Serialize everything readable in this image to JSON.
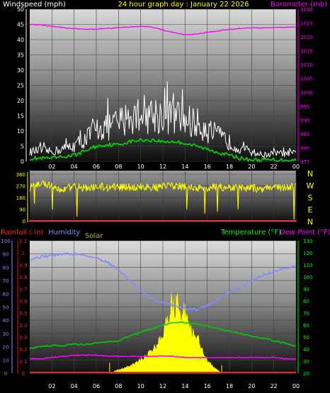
{
  "chart_data": [
    {
      "type": "line",
      "title": "24 hour graph day : January 22 2026",
      "ylabel_left": "Windspeed (mph)",
      "ylabel_right": "Barometer (mb)",
      "y_left_ticks": [
        0,
        5,
        10,
        15,
        20,
        25,
        30,
        35,
        40,
        45,
        50
      ],
      "y_right_ticks": [
        975,
        980,
        985,
        990,
        995,
        1000,
        1005,
        1010,
        1015,
        1020,
        1025,
        1030
      ],
      "ylim_left": [
        0,
        50
      ],
      "ylim_right": [
        975,
        1030
      ],
      "x_ticks": [
        "02",
        "04",
        "06",
        "08",
        "10",
        "12",
        "14",
        "16",
        "18",
        "20",
        "22",
        "00"
      ],
      "xlim_hours": [
        0,
        24
      ],
      "colors": {
        "gust": "#ffffff",
        "wind": "#00dd00",
        "barometer": "#ff00ff"
      },
      "series": [
        {
          "name": "barometer",
          "axis": "right",
          "x": [
            0,
            1,
            2,
            3,
            4,
            5,
            6,
            7,
            8,
            9,
            10,
            11,
            12,
            13,
            14,
            15,
            16,
            17,
            18,
            19,
            20,
            21,
            22,
            23,
            24
          ],
          "values": [
            1024.5,
            1024.3,
            1023.8,
            1023.4,
            1023.0,
            1022.8,
            1022.8,
            1023.0,
            1023.3,
            1023.6,
            1023.8,
            1023.5,
            1022.5,
            1021.5,
            1020.7,
            1021.0,
            1021.6,
            1022.2,
            1022.7,
            1023.0,
            1023.2,
            1023.3,
            1023.4,
            1023.5,
            1023.6
          ]
        },
        {
          "name": "gust",
          "axis": "left",
          "x": [
            0,
            1,
            2,
            3,
            4,
            5,
            6,
            7,
            8,
            9,
            10,
            11,
            12,
            13,
            14,
            15,
            16,
            17,
            18,
            19,
            20,
            21,
            22,
            23,
            24
          ],
          "values": [
            3,
            3.5,
            3,
            4,
            5,
            7,
            10,
            11,
            12,
            14,
            15,
            15,
            14.5,
            14,
            13,
            12,
            10,
            8,
            6,
            4,
            3,
            2,
            2.5,
            2.5,
            2.5
          ]
        },
        {
          "name": "wind",
          "axis": "left",
          "x": [
            0,
            1,
            2,
            3,
            4,
            5,
            6,
            7,
            8,
            9,
            10,
            11,
            12,
            13,
            14,
            15,
            16,
            17,
            18,
            19,
            20,
            21,
            22,
            23,
            24
          ],
          "values": [
            1,
            1,
            1,
            1.5,
            2,
            3.5,
            5,
            5.5,
            5.5,
            6.5,
            7,
            7,
            6.5,
            6.5,
            6,
            5,
            4,
            3,
            2,
            1,
            0.5,
            0.5,
            0.5,
            0.5,
            0.5
          ]
        }
      ]
    },
    {
      "type": "line",
      "y_left_ticks": [
        0,
        90,
        180,
        270,
        360
      ],
      "ylim": [
        0,
        360
      ],
      "direction_labels": [
        "N",
        "W",
        "S",
        "E",
        "N"
      ],
      "x_ticks": [],
      "colors": {
        "direction": "#ffff00",
        "baseline": "#ff3333"
      },
      "series": [
        {
          "name": "direction",
          "x": [
            0,
            1,
            2,
            3,
            4,
            5,
            6,
            7,
            8,
            9,
            10,
            11,
            12,
            13,
            14,
            15,
            16,
            17,
            18,
            19,
            20,
            21,
            22,
            23,
            24
          ],
          "values": [
            255,
            285,
            270,
            245,
            265,
            255,
            265,
            258,
            262,
            260,
            262,
            258,
            265,
            270,
            262,
            258,
            255,
            262,
            258,
            250,
            255,
            245,
            262,
            255,
            265
          ]
        }
      ]
    },
    {
      "type": "line",
      "legend": {
        "rainfall": "Rainfall (.in)",
        "humidity": "Humidity",
        "solar": "Solar",
        "temperature": "Temperature (°F)",
        "dewpoint": "Dew Point (°F)"
      },
      "humidity_ticks": [
        0,
        10,
        20,
        30,
        40,
        50,
        60,
        70,
        80,
        90,
        100
      ],
      "rain_ticks": [
        0,
        0.1,
        0.2,
        0.3,
        0.4,
        0.5,
        0.6,
        0.7,
        0.8,
        0.9,
        1,
        1.1
      ],
      "temp_ticks": [
        20,
        30,
        40,
        50,
        60,
        70,
        80,
        90,
        100,
        110,
        120,
        130
      ],
      "ylim_humidity": [
        0,
        100
      ],
      "ylim_rain": [
        0,
        1.1
      ],
      "ylim_temp": [
        20,
        130
      ],
      "x_ticks": [
        "02",
        "04",
        "06",
        "08",
        "10",
        "12",
        "14",
        "16",
        "18",
        "20",
        "22",
        "00"
      ],
      "colors": {
        "humidity": "#8888ff",
        "temperature": "#00cc00",
        "dewpoint": "#ff00ff",
        "solar": "#ffff00",
        "rainfall": "#ff2222",
        "rain_axis": "#ff0000",
        "humidity_axis": "#8888ff",
        "temp_axis": "#00ff00"
      },
      "series": [
        {
          "name": "humidity",
          "axis": "humidity",
          "x": [
            0,
            1,
            2,
            3,
            4,
            5,
            6,
            7,
            8,
            9,
            10,
            11,
            12,
            13,
            14,
            15,
            16,
            17,
            18,
            19,
            20,
            21,
            22,
            23,
            24
          ],
          "values": [
            86,
            88,
            89,
            90,
            90,
            89,
            87,
            84,
            78,
            70,
            62,
            56,
            53,
            51,
            49,
            48,
            51,
            56,
            61,
            65,
            70,
            74,
            77,
            79,
            81
          ]
        },
        {
          "name": "temperature",
          "axis": "temp",
          "x": [
            0,
            1,
            2,
            3,
            4,
            5,
            6,
            7,
            8,
            9,
            10,
            11,
            12,
            13,
            14,
            15,
            16,
            17,
            18,
            19,
            20,
            21,
            22,
            23,
            24
          ],
          "values": [
            41,
            42,
            43,
            43,
            44,
            44,
            45,
            46,
            47,
            51,
            54,
            57,
            60,
            62,
            62,
            61,
            59,
            57,
            55,
            53,
            51,
            49,
            47,
            45,
            43
          ]
        },
        {
          "name": "dewpoint",
          "axis": "temp",
          "x": [
            0,
            1,
            2,
            3,
            4,
            5,
            6,
            7,
            8,
            9,
            10,
            11,
            12,
            13,
            14,
            15,
            16,
            17,
            18,
            19,
            20,
            21,
            22,
            23,
            24
          ],
          "values": [
            32,
            32,
            33,
            34,
            35,
            35,
            35,
            34,
            34,
            34,
            34,
            34,
            34,
            34,
            33,
            33,
            33,
            33,
            33,
            33,
            33,
            33,
            33,
            32,
            32
          ]
        },
        {
          "name": "solar",
          "axis": "humidity",
          "x": [
            7.2,
            7.8,
            8.5,
            9.2,
            10,
            10.8,
            11.5,
            12,
            12.5,
            12.8,
            13,
            13.3,
            13.6,
            14,
            14.4,
            14.8,
            15.2,
            15.6,
            16,
            16.5,
            17,
            17.3
          ],
          "values": [
            0,
            2,
            4,
            6,
            10,
            15,
            22,
            30,
            40,
            58,
            48,
            53,
            40,
            48,
            36,
            28,
            26,
            17,
            10,
            5,
            2,
            0
          ]
        },
        {
          "name": "rainfall",
          "axis": "rain",
          "x": [
            0,
            24
          ],
          "values": [
            0,
            0
          ]
        }
      ]
    }
  ]
}
